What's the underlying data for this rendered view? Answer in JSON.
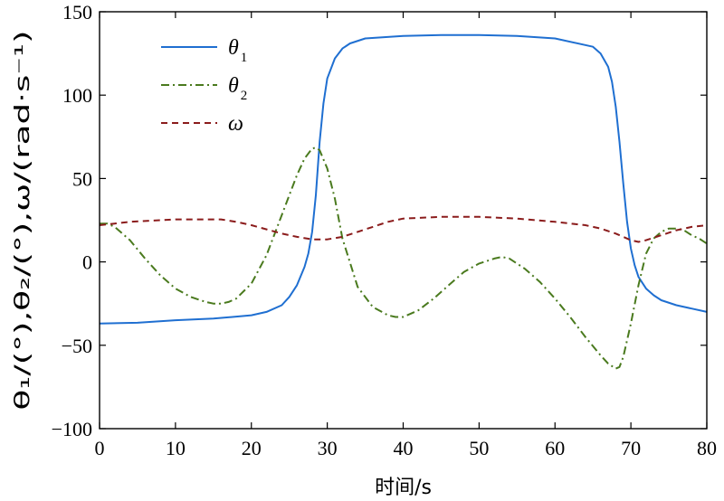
{
  "chart_data": {
    "type": "line",
    "xlabel": "时间/s",
    "ylabel": "θ₁/(°),θ₂/(°),ω/(rad·s⁻¹)",
    "xlim": [
      0,
      80
    ],
    "ylim": [
      -100,
      150
    ],
    "xticks": [
      0,
      10,
      20,
      30,
      40,
      50,
      60,
      70,
      80
    ],
    "yticks": [
      -100,
      -50,
      0,
      50,
      100,
      150
    ],
    "grid": false,
    "legend_position": "top-left",
    "series": [
      {
        "name": "θ1",
        "legend_symbol": "θ",
        "legend_subscript": "1",
        "color": "#1f6fd1",
        "style": "solid",
        "x": [
          0,
          5,
          10,
          15,
          20,
          22,
          24,
          25,
          26,
          27,
          27.5,
          28,
          28.5,
          29,
          29.5,
          30,
          31,
          32,
          33,
          35,
          40,
          45,
          50,
          55,
          60,
          65,
          66,
          67,
          67.5,
          68,
          68.5,
          69,
          69.5,
          70,
          70.5,
          71,
          72,
          73,
          74,
          76,
          78,
          80
        ],
        "y": [
          -37,
          -36.5,
          -35,
          -34,
          -32,
          -30,
          -26,
          -21,
          -14,
          -3,
          5,
          18,
          40,
          72,
          95,
          110,
          122,
          128,
          131,
          134,
          135.5,
          136,
          136,
          135.5,
          134,
          129,
          125,
          117,
          108,
          93,
          72,
          47,
          24,
          8,
          -2,
          -9,
          -16,
          -20,
          -23,
          -26,
          -28,
          -30
        ]
      },
      {
        "name": "θ2",
        "legend_symbol": "θ",
        "legend_subscript": "2",
        "color": "#4a7a1e",
        "style": "dashdot",
        "x": [
          0,
          1,
          2,
          4,
          6,
          8,
          10,
          12,
          14,
          15,
          16,
          17,
          18,
          20,
          22,
          24,
          25,
          26,
          27,
          28,
          28.5,
          29,
          30,
          31,
          32,
          34,
          36,
          38,
          39,
          40,
          42,
          44,
          46,
          48,
          50,
          52,
          53,
          54,
          56,
          58,
          60,
          62,
          64,
          66,
          67,
          68,
          68.5,
          69,
          70,
          71,
          72,
          73,
          74,
          75,
          76,
          77,
          78,
          79,
          80
        ],
        "y": [
          23,
          23,
          21,
          13,
          2,
          -8,
          -16,
          -21,
          -24,
          -25,
          -25,
          -24,
          -22,
          -13,
          4,
          28,
          40,
          52,
          62,
          68,
          68.5,
          67,
          56,
          38,
          14,
          -15,
          -27,
          -32,
          -33,
          -33,
          -29,
          -22,
          -14,
          -6,
          -1,
          2,
          3,
          2,
          -4,
          -12,
          -22,
          -33,
          -45,
          -56,
          -61,
          -64,
          -63,
          -57,
          -37,
          -14,
          5,
          14,
          18,
          20,
          20,
          19,
          16,
          14,
          11
        ]
      },
      {
        "name": "ω",
        "legend_symbol": "ω",
        "legend_subscript": "",
        "color": "#8b1c1c",
        "style": "dashed",
        "x": [
          0,
          2,
          4,
          6,
          8,
          10,
          12,
          14,
          16,
          18,
          20,
          22,
          24,
          26,
          28,
          30,
          32,
          34,
          36,
          38,
          40,
          45,
          50,
          55,
          60,
          64,
          66,
          68,
          70,
          71,
          72,
          74,
          76,
          78,
          80
        ],
        "y": [
          22,
          23,
          24,
          24.5,
          25,
          25.5,
          25.5,
          25.5,
          25.5,
          24,
          22,
          19.5,
          17,
          15,
          13.5,
          13.5,
          15,
          18,
          21,
          24,
          26,
          27,
          27,
          26,
          24,
          22,
          20,
          17,
          13,
          12,
          13,
          16,
          19,
          21,
          22
        ]
      }
    ]
  }
}
